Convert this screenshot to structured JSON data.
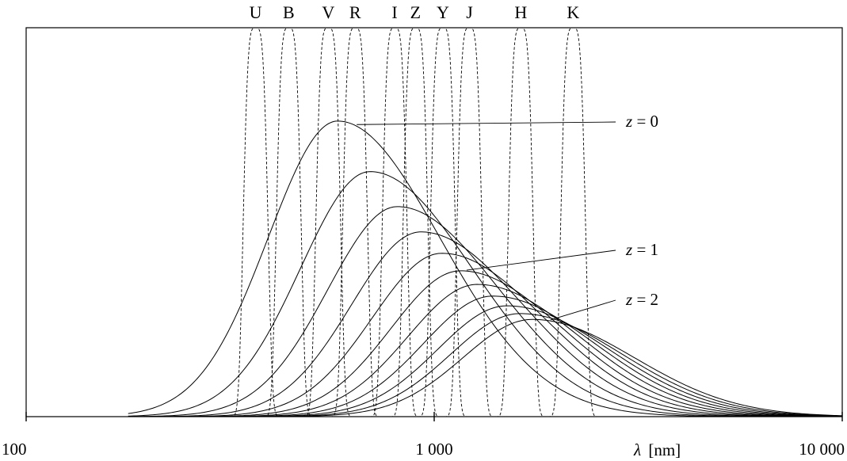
{
  "chart_data": {
    "type": "line",
    "title": "",
    "xlabel_symbol": "λ",
    "xlabel_unit": "[nm]",
    "ylabel": "",
    "x_scale": "log",
    "xlim": [
      100,
      10000
    ],
    "ylim": [
      0,
      1
    ],
    "grid": false,
    "legend": "none",
    "x_ticks": [
      {
        "value": 100,
        "label": "100"
      },
      {
        "value": 1000,
        "label": "1 000"
      },
      {
        "value": 10000,
        "label": "10 000"
      }
    ],
    "filters": [
      {
        "label": "U",
        "center": 365,
        "peak": 1.0
      },
      {
        "label": "B",
        "center": 440,
        "peak": 1.0
      },
      {
        "label": "V",
        "center": 550,
        "peak": 1.0
      },
      {
        "label": "R",
        "center": 640,
        "peak": 1.0
      },
      {
        "label": "I",
        "center": 800,
        "peak": 1.0
      },
      {
        "label": "Z",
        "center": 900,
        "peak": 1.0
      },
      {
        "label": "Y",
        "center": 1050,
        "peak": 1.0
      },
      {
        "label": "J",
        "center": 1220,
        "peak": 1.0
      },
      {
        "label": "H",
        "center": 1630,
        "peak": 1.0
      },
      {
        "label": "K",
        "center": 2190,
        "peak": 1.0
      }
    ],
    "spectra": [
      {
        "redshift": 0.0,
        "peak_wavelength": 580,
        "peak": 0.76
      },
      {
        "redshift": 0.2,
        "peak_wavelength": 696,
        "peak": 0.63
      },
      {
        "redshift": 0.4,
        "peak_wavelength": 812,
        "peak": 0.54
      },
      {
        "redshift": 0.6,
        "peak_wavelength": 928,
        "peak": 0.475
      },
      {
        "redshift": 0.8,
        "peak_wavelength": 1044,
        "peak": 0.42
      },
      {
        "redshift": 1.0,
        "peak_wavelength": 1160,
        "peak": 0.375
      },
      {
        "redshift": 1.2,
        "peak_wavelength": 1276,
        "peak": 0.34
      },
      {
        "redshift": 1.4,
        "peak_wavelength": 1392,
        "peak": 0.31
      },
      {
        "redshift": 1.6,
        "peak_wavelength": 1508,
        "peak": 0.285
      },
      {
        "redshift": 1.8,
        "peak_wavelength": 1624,
        "peak": 0.265
      },
      {
        "redshift": 2.0,
        "peak_wavelength": 1740,
        "peak": 0.25
      }
    ],
    "annotations": [
      {
        "var": "z",
        "text": " = 0",
        "points_to_wavelength": 640
      },
      {
        "var": "z",
        "text": " = 1",
        "points_to_wavelength": 1190
      },
      {
        "var": "z",
        "text": " = 2",
        "points_to_wavelength": 1910
      }
    ]
  }
}
